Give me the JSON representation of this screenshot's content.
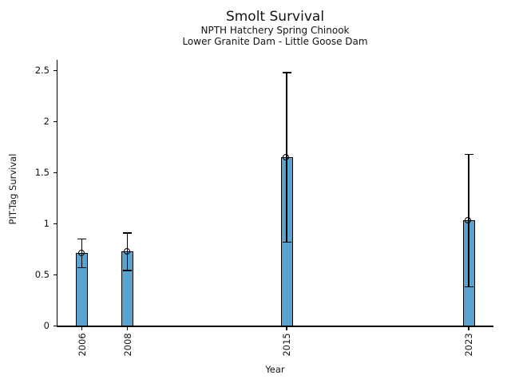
{
  "figure": {
    "title": "Smolt Survival",
    "subtitle_line1": "NPTH Hatchery Spring Chinook",
    "subtitle_line2": "Lower Granite Dam - Little Goose Dam",
    "xlabel": "Year",
    "ylabel": "PIT-Tag Survival"
  },
  "chart_data": {
    "type": "bar",
    "title": "Smolt Survival",
    "subtitle": [
      "NPTH Hatchery Spring Chinook",
      "Lower Granite Dam - Little Goose Dam"
    ],
    "xlabel": "Year",
    "ylabel": "PIT-Tag Survival",
    "categories": [
      "2006",
      "2008",
      "2015",
      "2023"
    ],
    "x": [
      2006,
      2008,
      2015,
      2023
    ],
    "values": [
      0.71,
      0.73,
      1.65,
      1.03
    ],
    "error_low": [
      0.57,
      0.54,
      0.82,
      0.38
    ],
    "error_high": [
      0.85,
      0.91,
      2.48,
      1.68
    ],
    "marker": "open-circle",
    "ytick_labels": [
      "0",
      "0.5",
      "1",
      "1.5",
      "2",
      "2.5"
    ],
    "ytick_values": [
      0,
      0.5,
      1,
      1.5,
      2,
      2.5
    ],
    "ylim": [
      0,
      2.61
    ],
    "xlim": [
      2004.9,
      2024.1
    ],
    "grid": false,
    "legend": false,
    "bar_color": "#5BA3CF",
    "bar_edge_color": "#000000",
    "error_color": "#000000",
    "text_color": "#141414"
  }
}
